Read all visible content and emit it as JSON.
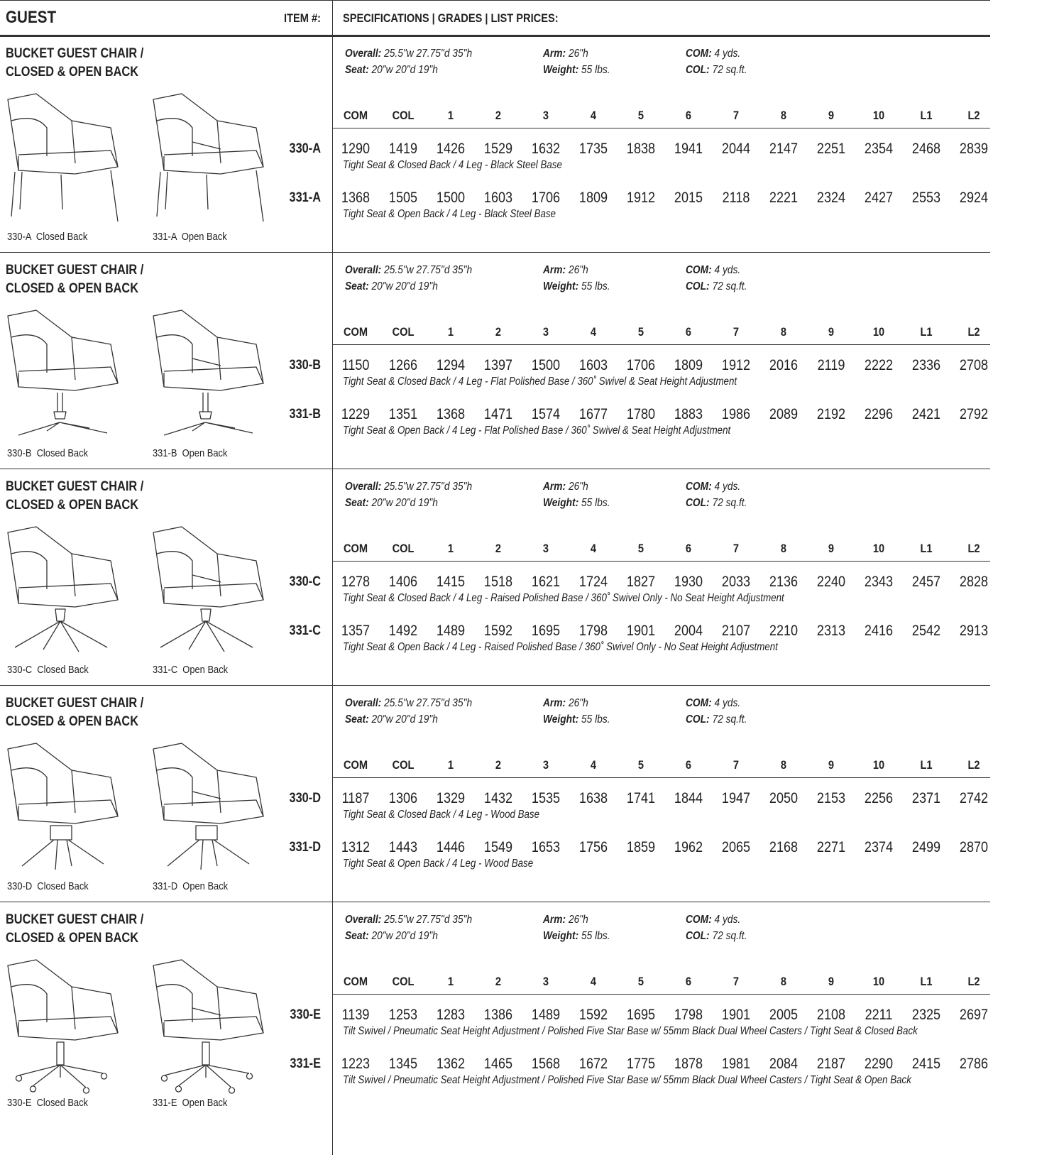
{
  "header": {
    "title": "GUEST",
    "item": "ITEM #:",
    "specs": "SPECIFICATIONS | GRADES | LIST PRICES:"
  },
  "sections": [
    {
      "title": [
        "BUCKET GUEST CHAIR /",
        "CLOSED & OPEN BACK"
      ],
      "specs": {
        "overall_label": "Overall:",
        "overall": "25.5\"w 27.75\"d 35\"h",
        "seat_label": "Seat:",
        "seat": "20\"w 20\"d 19\"h",
        "arm_label": "Arm:",
        "arm": "26\"h",
        "weight_label": "Weight:",
        "weight": "55 lbs.",
        "com_label": "COM:",
        "com": "4 yds.",
        "col_label": "COL:",
        "col": "72 sq.ft."
      },
      "grades": [
        "COM",
        "COL",
        "1",
        "2",
        "3",
        "4",
        "5",
        "6",
        "7",
        "8",
        "9",
        "10",
        "L1",
        "L2"
      ],
      "items": [
        {
          "code": "330-A",
          "prices": [
            1290,
            1419,
            1426,
            1529,
            1632,
            1735,
            1838,
            1941,
            2044,
            2147,
            2251,
            2354,
            2468,
            2839
          ],
          "description": "Tight Seat & Closed Back / 4 Leg - Black Steel Base"
        },
        {
          "code": "331-A",
          "prices": [
            1368,
            1505,
            1500,
            1603,
            1706,
            1809,
            1912,
            2015,
            2118,
            2221,
            2324,
            2427,
            2553,
            2924
          ],
          "description": "Tight Seat & Open Back / 4 Leg - Black Steel Base"
        }
      ],
      "captions": [
        "330-A  Closed Back",
        "331-A  Open Back"
      ]
    },
    {
      "title": [
        "BUCKET GUEST CHAIR /",
        "CLOSED & OPEN BACK"
      ],
      "specs": {
        "overall_label": "Overall:",
        "overall": "25.5\"w 27.75\"d 35\"h",
        "seat_label": "Seat:",
        "seat": "20\"w 20\"d 19\"h",
        "arm_label": "Arm:",
        "arm": "26\"h",
        "weight_label": "Weight:",
        "weight": "55 lbs.",
        "com_label": "COM:",
        "com": "4 yds.",
        "col_label": "COL:",
        "col": "72 sq.ft."
      },
      "grades": [
        "COM",
        "COL",
        "1",
        "2",
        "3",
        "4",
        "5",
        "6",
        "7",
        "8",
        "9",
        "10",
        "L1",
        "L2"
      ],
      "items": [
        {
          "code": "330-B",
          "prices": [
            1150,
            1266,
            1294,
            1397,
            1500,
            1603,
            1706,
            1809,
            1912,
            2016,
            2119,
            2222,
            2336,
            2708
          ],
          "description": "Tight Seat & Closed Back / 4 Leg - Flat Polished Base / 360˚ Swivel & Seat Height Adjustment"
        },
        {
          "code": "331-B",
          "prices": [
            1229,
            1351,
            1368,
            1471,
            1574,
            1677,
            1780,
            1883,
            1986,
            2089,
            2192,
            2296,
            2421,
            2792
          ],
          "description": "Tight Seat & Open Back / 4 Leg - Flat Polished Base / 360˚ Swivel & Seat Height Adjustment"
        }
      ],
      "captions": [
        "330-B  Closed Back",
        "331-B  Open Back"
      ]
    },
    {
      "title": [
        "BUCKET GUEST CHAIR /",
        "CLOSED & OPEN BACK"
      ],
      "specs": {
        "overall_label": "Overall:",
        "overall": "25.5\"w 27.75\"d 35\"h",
        "seat_label": "Seat:",
        "seat": "20\"w 20\"d 19\"h",
        "arm_label": "Arm:",
        "arm": "26\"h",
        "weight_label": "Weight:",
        "weight": "55 lbs.",
        "com_label": "COM:",
        "com": "4 yds.",
        "col_label": "COL:",
        "col": "72 sq.ft."
      },
      "grades": [
        "COM",
        "COL",
        "1",
        "2",
        "3",
        "4",
        "5",
        "6",
        "7",
        "8",
        "9",
        "10",
        "L1",
        "L2"
      ],
      "items": [
        {
          "code": "330-C",
          "prices": [
            1278,
            1406,
            1415,
            1518,
            1621,
            1724,
            1827,
            1930,
            2033,
            2136,
            2240,
            2343,
            2457,
            2828
          ],
          "description": "Tight Seat & Closed Back / 4 Leg - Raised Polished Base / 360˚ Swivel Only - No Seat Height Adjustment"
        },
        {
          "code": "331-C",
          "prices": [
            1357,
            1492,
            1489,
            1592,
            1695,
            1798,
            1901,
            2004,
            2107,
            2210,
            2313,
            2416,
            2542,
            2913
          ],
          "description": "Tight Seat & Open Back / 4 Leg - Raised Polished Base / 360˚ Swivel Only - No Seat Height Adjustment"
        }
      ],
      "captions": [
        "330-C  Closed Back",
        "331-C  Open Back"
      ]
    },
    {
      "title": [
        "BUCKET GUEST CHAIR /",
        "CLOSED & OPEN BACK"
      ],
      "specs": {
        "overall_label": "Overall:",
        "overall": "25.5\"w 27.75\"d 35\"h",
        "seat_label": "Seat:",
        "seat": "20\"w 20\"d 19\"h",
        "arm_label": "Arm:",
        "arm": "26\"h",
        "weight_label": "Weight:",
        "weight": "55 lbs.",
        "com_label": "COM:",
        "com": "4 yds.",
        "col_label": "COL:",
        "col": "72 sq.ft."
      },
      "grades": [
        "COM",
        "COL",
        "1",
        "2",
        "3",
        "4",
        "5",
        "6",
        "7",
        "8",
        "9",
        "10",
        "L1",
        "L2"
      ],
      "items": [
        {
          "code": "330-D",
          "prices": [
            1187,
            1306,
            1329,
            1432,
            1535,
            1638,
            1741,
            1844,
            1947,
            2050,
            2153,
            2256,
            2371,
            2742
          ],
          "description": "Tight Seat & Closed Back / 4 Leg - Wood Base"
        },
        {
          "code": "331-D",
          "prices": [
            1312,
            1443,
            1446,
            1549,
            1653,
            1756,
            1859,
            1962,
            2065,
            2168,
            2271,
            2374,
            2499,
            2870
          ],
          "description": "Tight Seat & Open Back / 4 Leg - Wood Base"
        }
      ],
      "captions": [
        "330-D  Closed Back",
        "331-D  Open Back"
      ]
    },
    {
      "title": [
        "BUCKET GUEST CHAIR /",
        "CLOSED & OPEN BACK"
      ],
      "specs": {
        "overall_label": "Overall:",
        "overall": "25.5\"w 27.75\"d 35\"h",
        "seat_label": "Seat:",
        "seat": "20\"w 20\"d 19\"h",
        "arm_label": "Arm:",
        "arm": "26\"h",
        "weight_label": "Weight:",
        "weight": "55 lbs.",
        "com_label": "COM:",
        "com": "4 yds.",
        "col_label": "COL:",
        "col": "72 sq.ft."
      },
      "grades": [
        "COM",
        "COL",
        "1",
        "2",
        "3",
        "4",
        "5",
        "6",
        "7",
        "8",
        "9",
        "10",
        "L1",
        "L2"
      ],
      "items": [
        {
          "code": "330-E",
          "prices": [
            1139,
            1253,
            1283,
            1386,
            1489,
            1592,
            1695,
            1798,
            1901,
            2005,
            2108,
            2211,
            2325,
            2697
          ],
          "description": "Tilt Swivel / Pneumatic Seat Height Adjustment / Polished Five Star Base w/ 55mm Black Dual Wheel Casters / Tight Seat & Closed Back"
        },
        {
          "code": "331-E",
          "prices": [
            1223,
            1345,
            1362,
            1465,
            1568,
            1672,
            1775,
            1878,
            1981,
            2084,
            2187,
            2290,
            2415,
            2786
          ],
          "description": "Tilt Swivel / Pneumatic Seat Height Adjustment / Polished Five Star Base w/ 55mm Black Dual Wheel Casters / Tight Seat & Open Back"
        }
      ],
      "captions": [
        "330-E  Closed Back",
        "331-E  Open Back"
      ]
    }
  ]
}
